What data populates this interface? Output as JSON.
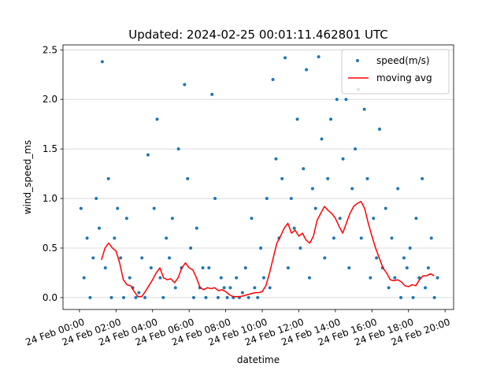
{
  "chart_data": {
    "type": "scatter",
    "title": "Updated: 2024-02-25 00:01:11.462801 UTC",
    "xlabel": "datetime",
    "ylabel": "wind_speed_ms",
    "xlim": [
      "23 Feb 23:06",
      "24 Feb 20:28"
    ],
    "xticks": [
      "24 Feb 00:00",
      "24 Feb 02:00",
      "24 Feb 04:00",
      "24 Feb 06:00",
      "24 Feb 08:00",
      "24 Feb 10:00",
      "24 Feb 12:00",
      "24 Feb 14:00",
      "24 Feb 16:00",
      "24 Feb 18:00",
      "24 Feb 20:00"
    ],
    "ylim": [
      -0.12,
      2.55
    ],
    "yticks": [
      {
        "value": 0,
        "label": "0.0"
      },
      0.5,
      {
        "value": 1,
        "label": "1.0"
      },
      1.5,
      {
        "value": 2,
        "label": "2.0"
      },
      2.5
    ],
    "grid": "y",
    "legend": "upper right",
    "series": [
      {
        "name": "speed(m/s)",
        "type": "scatter",
        "color": "#1f77b4",
        "x": [
          "24 Feb 00:05",
          "24 Feb 00:15",
          "24 Feb 00:25",
          "24 Feb 00:35",
          "24 Feb 00:45",
          "24 Feb 00:55",
          "24 Feb 01:05",
          "24 Feb 01:15",
          "24 Feb 01:25",
          "24 Feb 01:35",
          "24 Feb 01:45",
          "24 Feb 01:55",
          "24 Feb 02:05",
          "24 Feb 02:15",
          "24 Feb 02:25",
          "24 Feb 02:35",
          "24 Feb 02:45",
          "24 Feb 02:55",
          "24 Feb 03:05",
          "24 Feb 03:15",
          "24 Feb 03:25",
          "24 Feb 03:35",
          "24 Feb 03:45",
          "24 Feb 03:55",
          "24 Feb 04:05",
          "24 Feb 04:15",
          "24 Feb 04:25",
          "24 Feb 04:35",
          "24 Feb 04:45",
          "24 Feb 04:55",
          "24 Feb 05:05",
          "24 Feb 05:15",
          "24 Feb 05:25",
          "24 Feb 05:35",
          "24 Feb 05:45",
          "24 Feb 05:55",
          "24 Feb 06:05",
          "24 Feb 06:15",
          "24 Feb 06:25",
          "24 Feb 06:35",
          "24 Feb 06:45",
          "24 Feb 06:55",
          "24 Feb 07:05",
          "24 Feb 07:15",
          "24 Feb 07:25",
          "24 Feb 07:35",
          "24 Feb 07:45",
          "24 Feb 07:55",
          "24 Feb 08:05",
          "24 Feb 08:15",
          "24 Feb 08:25",
          "24 Feb 08:35",
          "24 Feb 08:45",
          "24 Feb 08:55",
          "24 Feb 09:05",
          "24 Feb 09:15",
          "24 Feb 09:25",
          "24 Feb 09:35",
          "24 Feb 09:45",
          "24 Feb 09:55",
          "24 Feb 10:05",
          "24 Feb 10:15",
          "24 Feb 10:25",
          "24 Feb 10:35",
          "24 Feb 10:45",
          "24 Feb 10:55",
          "24 Feb 11:05",
          "24 Feb 11:15",
          "24 Feb 11:25",
          "24 Feb 11:35",
          "24 Feb 11:45",
          "24 Feb 11:55",
          "24 Feb 12:05",
          "24 Feb 12:15",
          "24 Feb 12:25",
          "24 Feb 12:35",
          "24 Feb 12:45",
          "24 Feb 12:55",
          "24 Feb 13:05",
          "24 Feb 13:15",
          "24 Feb 13:25",
          "24 Feb 13:35",
          "24 Feb 13:45",
          "24 Feb 13:55",
          "24 Feb 14:05",
          "24 Feb 14:15",
          "24 Feb 14:25",
          "24 Feb 14:35",
          "24 Feb 14:45",
          "24 Feb 14:55",
          "24 Feb 15:05",
          "24 Feb 15:15",
          "24 Feb 15:25",
          "24 Feb 15:35",
          "24 Feb 15:45",
          "24 Feb 15:55",
          "24 Feb 16:05",
          "24 Feb 16:15",
          "24 Feb 16:25",
          "24 Feb 16:35",
          "24 Feb 16:45",
          "24 Feb 16:55",
          "24 Feb 17:05",
          "24 Feb 17:15",
          "24 Feb 17:25",
          "24 Feb 17:35",
          "24 Feb 17:45",
          "24 Feb 17:55",
          "24 Feb 18:05",
          "24 Feb 18:15",
          "24 Feb 18:25",
          "24 Feb 18:35",
          "24 Feb 18:45",
          "24 Feb 18:55",
          "24 Feb 19:05",
          "24 Feb 19:15",
          "24 Feb 19:25",
          "24 Feb 19:35"
        ],
        "values": [
          0.9,
          0.2,
          0.6,
          0.0,
          0.4,
          1.0,
          0.7,
          2.38,
          0.3,
          1.2,
          0.0,
          0.6,
          0.9,
          0.4,
          0.0,
          0.8,
          0.2,
          0.1,
          0.0,
          0.05,
          0.4,
          0.0,
          1.44,
          0.3,
          0.9,
          1.8,
          0.2,
          0.0,
          0.6,
          0.4,
          0.8,
          0.1,
          1.5,
          0.3,
          2.15,
          1.2,
          0.5,
          0.0,
          0.7,
          0.1,
          0.3,
          0.0,
          0.3,
          2.05,
          1.0,
          0.0,
          0.2,
          0.1,
          0.0,
          0.1,
          0.0,
          0.2,
          0.0,
          0.05,
          0.3,
          0.0,
          0.8,
          0.1,
          0.0,
          0.5,
          0.2,
          1.0,
          0.1,
          2.2,
          1.4,
          0.6,
          1.2,
          2.42,
          0.3,
          1.0,
          0.7,
          1.8,
          0.5,
          1.3,
          2.3,
          0.2,
          1.1,
          0.9,
          2.43,
          1.6,
          0.4,
          1.2,
          1.8,
          0.6,
          2.0,
          0.8,
          1.4,
          2.0,
          0.3,
          1.1,
          1.5,
          2.1,
          0.6,
          1.9,
          1.2,
          0.2,
          0.8,
          0.4,
          1.7,
          0.3,
          0.9,
          0.1,
          0.6,
          0.2,
          1.1,
          0.0,
          0.4,
          0.3,
          0.5,
          0.0,
          0.8,
          0.2,
          1.2,
          0.1,
          0.3,
          0.6,
          0.0,
          0.2
        ]
      },
      {
        "name": "moving avg",
        "type": "line",
        "color": "#ff0000",
        "x": [
          "24 Feb 01:12",
          "24 Feb 01:24",
          "24 Feb 01:36",
          "24 Feb 01:48",
          "24 Feb 02:00",
          "24 Feb 02:12",
          "24 Feb 02:24",
          "24 Feb 02:36",
          "24 Feb 02:48",
          "24 Feb 03:00",
          "24 Feb 03:12",
          "24 Feb 03:24",
          "24 Feb 03:36",
          "24 Feb 03:48",
          "24 Feb 04:00",
          "24 Feb 04:12",
          "24 Feb 04:24",
          "24 Feb 04:36",
          "24 Feb 04:48",
          "24 Feb 05:00",
          "24 Feb 05:12",
          "24 Feb 05:24",
          "24 Feb 05:36",
          "24 Feb 05:48",
          "24 Feb 06:00",
          "24 Feb 06:12",
          "24 Feb 06:24",
          "24 Feb 06:36",
          "24 Feb 06:48",
          "24 Feb 07:00",
          "24 Feb 07:12",
          "24 Feb 07:24",
          "24 Feb 07:36",
          "24 Feb 07:48",
          "24 Feb 08:00",
          "24 Feb 08:12",
          "24 Feb 08:24",
          "24 Feb 08:36",
          "24 Feb 08:48",
          "24 Feb 09:00",
          "24 Feb 09:12",
          "24 Feb 09:24",
          "24 Feb 09:36",
          "24 Feb 09:48",
          "24 Feb 10:00",
          "24 Feb 10:12",
          "24 Feb 10:24",
          "24 Feb 10:36",
          "24 Feb 10:48",
          "24 Feb 11:00",
          "24 Feb 11:12",
          "24 Feb 11:24",
          "24 Feb 11:36",
          "24 Feb 11:48",
          "24 Feb 12:00",
          "24 Feb 12:12",
          "24 Feb 12:24",
          "24 Feb 12:36",
          "24 Feb 12:48",
          "24 Feb 13:00",
          "24 Feb 13:12",
          "24 Feb 13:24",
          "24 Feb 13:36",
          "24 Feb 13:48",
          "24 Feb 14:00",
          "24 Feb 14:12",
          "24 Feb 14:24",
          "24 Feb 14:36",
          "24 Feb 14:48",
          "24 Feb 15:00",
          "24 Feb 15:12",
          "24 Feb 15:24",
          "24 Feb 15:36",
          "24 Feb 15:48",
          "24 Feb 16:00",
          "24 Feb 16:12",
          "24 Feb 16:24",
          "24 Feb 16:36",
          "24 Feb 16:48",
          "24 Feb 17:00",
          "24 Feb 17:12",
          "24 Feb 17:24",
          "24 Feb 17:36",
          "24 Feb 17:48",
          "24 Feb 18:00",
          "24 Feb 18:12",
          "24 Feb 18:24",
          "24 Feb 18:36",
          "24 Feb 18:48",
          "24 Feb 19:00",
          "24 Feb 19:12",
          "24 Feb 19:24"
        ],
        "values": [
          0.38,
          0.5,
          0.55,
          0.5,
          0.47,
          0.35,
          0.18,
          0.13,
          0.12,
          0.06,
          0.01,
          0.01,
          0.06,
          0.12,
          0.18,
          0.25,
          0.3,
          0.2,
          0.18,
          0.19,
          0.15,
          0.2,
          0.3,
          0.35,
          0.3,
          0.28,
          0.2,
          0.1,
          0.08,
          0.1,
          0.09,
          0.1,
          0.07,
          0.08,
          0.06,
          0.03,
          0.01,
          0.01,
          0.01,
          0.02,
          0.03,
          0.04,
          0.05,
          0.05,
          0.06,
          0.12,
          0.25,
          0.4,
          0.55,
          0.62,
          0.7,
          0.75,
          0.65,
          0.68,
          0.62,
          0.65,
          0.58,
          0.55,
          0.62,
          0.78,
          0.85,
          0.92,
          0.88,
          0.85,
          0.8,
          0.72,
          0.65,
          0.75,
          0.85,
          0.92,
          0.95,
          0.97,
          0.9,
          0.75,
          0.62,
          0.5,
          0.4,
          0.3,
          0.25,
          0.18,
          0.17,
          0.18,
          0.16,
          0.12,
          0.11,
          0.13,
          0.12,
          0.18,
          0.22,
          0.22,
          0.24,
          0.22
        ]
      }
    ]
  }
}
